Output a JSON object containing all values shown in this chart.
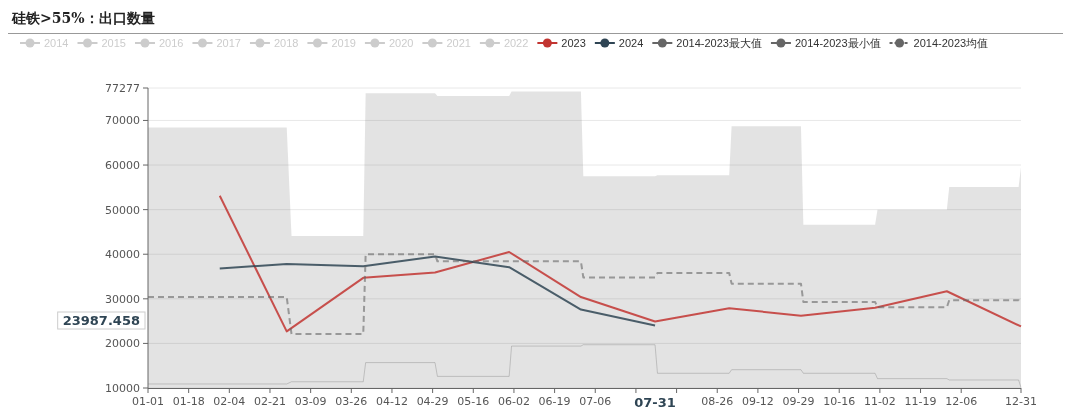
{
  "chart_data": {
    "type": "line",
    "title": "硅铁>55%：出口数量",
    "legend": "top",
    "grid": "y",
    "marker": "none",
    "xlim": [
      "--01-01",
      "--12-31"
    ],
    "ylim": [
      10000,
      77277
    ],
    "yticks": [
      10000,
      20000,
      30000,
      40000,
      50000,
      60000,
      70000,
      77277
    ],
    "xticks": [
      {
        "value": "--01-01",
        "label": "01-01"
      },
      {
        "value": "--01-18",
        "label": "01-18"
      },
      {
        "value": "--02-04",
        "label": "02-04"
      },
      {
        "value": "--02-21",
        "label": "02-21"
      },
      {
        "value": "--03-09",
        "label": "03-09"
      },
      {
        "value": "--03-26",
        "label": "03-26"
      },
      {
        "value": "--04-12",
        "label": "04-12"
      },
      {
        "value": "--04-29",
        "label": "04-29"
      },
      {
        "value": "--05-16",
        "label": "05-16"
      },
      {
        "value": "--06-02",
        "label": "06-02"
      },
      {
        "value": "--06-19",
        "label": "06-19"
      },
      {
        "value": "--07-06",
        "label": "07-06"
      },
      {
        "value": "--07-23",
        "label": null
      },
      {
        "value": "--08-09",
        "label": null
      },
      {
        "value": "--08-26",
        "label": "08-26"
      },
      {
        "value": "--09-12",
        "label": "09-12"
      },
      {
        "value": "--09-29",
        "label": "09-29"
      },
      {
        "value": "--10-16",
        "label": "10-16"
      },
      {
        "value": "--11-02",
        "label": "11-02"
      },
      {
        "value": "--11-19",
        "label": "11-19"
      },
      {
        "value": "--12-06",
        "label": "12-06"
      },
      {
        "value": "--12-31",
        "label": "12-31"
      }
    ],
    "annotations": [
      "23987.458",
      "07-31"
    ],
    "series": [
      {
        "name": "2014",
        "color": "#cccccc",
        "type": "line"
      },
      {
        "name": "2015",
        "color": "#cccccc",
        "type": "line"
      },
      {
        "name": "2016",
        "color": "#cccccc",
        "type": "line"
      },
      {
        "name": "2017",
        "color": "#cccccc",
        "type": "line"
      },
      {
        "name": "2018",
        "color": "#cccccc",
        "type": "line"
      },
      {
        "name": "2019",
        "color": "#cccccc",
        "type": "line"
      },
      {
        "name": "2020",
        "color": "#cccccc",
        "type": "line"
      },
      {
        "name": "2021",
        "color": "#cccccc",
        "type": "line"
      },
      {
        "name": "2022",
        "color": "#cccccc",
        "type": "line"
      },
      {
        "name": "2023",
        "color": "#c23531",
        "type": "line",
        "line_style": "solid",
        "x": [
          "--01-31",
          "--02-28",
          "--03-31",
          "--04-30",
          "--05-31",
          "--06-30",
          "--07-31",
          "--08-31",
          "--09-30",
          "--10-31",
          "--11-30",
          "--12-31"
        ],
        "values": [
          53100,
          22700,
          34700,
          35900,
          40500,
          30400,
          24900,
          27900,
          26200,
          28000,
          31700,
          23800
        ]
      },
      {
        "name": "2024",
        "color": "#2f4554",
        "type": "line",
        "line_style": "solid",
        "x": [
          "--01-31",
          "--02-28",
          "--03-31",
          "--04-30",
          "--05-31",
          "--06-30",
          "--07-31"
        ],
        "values": [
          36800,
          37800,
          37300,
          39500,
          37100,
          27600,
          24000
        ]
      },
      {
        "name": "2014-2023最大值",
        "color": "#666666",
        "type": "area",
        "x": [
          "--01-01",
          "--02-28",
          "--03-01",
          "--03-31",
          "--04-01",
          "--04-30",
          "--05-01",
          "--05-31",
          "--06-01",
          "--06-30",
          "--07-01",
          "--07-31",
          "--08-01",
          "--08-31",
          "--09-01",
          "--09-30",
          "--10-01",
          "--10-31",
          "--11-01",
          "--11-30",
          "--12-01",
          "--12-30",
          "--12-31"
        ],
        "values": [
          68400,
          68400,
          44100,
          44100,
          76100,
          76100,
          75500,
          75500,
          76500,
          76500,
          57500,
          57500,
          57700,
          57700,
          68700,
          68700,
          46600,
          46600,
          50000,
          50000,
          55100,
          55100,
          59500
        ]
      },
      {
        "name": "2014-2023最小值",
        "color": "#666666",
        "type": "line",
        "x": [
          "--01-01",
          "--02-28",
          "--03-01",
          "--03-31",
          "--04-01",
          "--04-30",
          "--05-01",
          "--05-31",
          "--06-01",
          "--06-30",
          "--07-01",
          "--07-31",
          "--08-01",
          "--08-31",
          "--09-01",
          "--09-30",
          "--10-01",
          "--10-31",
          "--11-01",
          "--11-30",
          "--12-01",
          "--12-30",
          "--12-31"
        ],
        "values": [
          10900,
          10900,
          11400,
          11400,
          15700,
          15700,
          12600,
          12600,
          19400,
          19400,
          19700,
          19700,
          13300,
          13300,
          14100,
          14100,
          13300,
          13300,
          12100,
          12100,
          11800,
          11800,
          10100
        ]
      },
      {
        "name": "2014-2023均值",
        "color": "#666666",
        "type": "line",
        "line_style": "dashed",
        "x": [
          "--01-01",
          "--02-28",
          "--03-01",
          "--03-31",
          "--04-01",
          "--04-30",
          "--05-01",
          "--06-30",
          "--07-01",
          "--07-31",
          "--08-01",
          "--08-31",
          "--09-01",
          "--09-30",
          "--10-01",
          "--10-31",
          "--11-01",
          "--11-30",
          "--12-01",
          "--12-30",
          "--12-31"
        ],
        "values": [
          30400,
          30400,
          22100,
          22100,
          40000,
          40000,
          38400,
          38400,
          34800,
          34800,
          35800,
          35800,
          33400,
          33400,
          29300,
          29300,
          28100,
          28100,
          29700,
          29700,
          28900
        ]
      }
    ]
  }
}
